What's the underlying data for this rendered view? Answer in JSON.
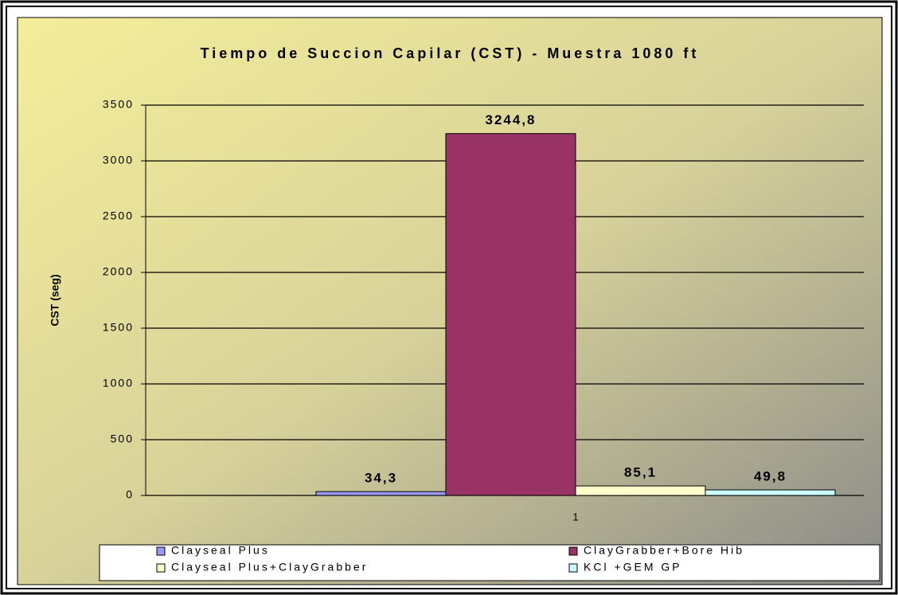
{
  "chart_data": {
    "type": "bar",
    "title": "Tiempo de Succion Capilar (CST) - Muestra 1080 ft",
    "y_label": "CST (seg)",
    "categories": [
      "1"
    ],
    "series": [
      {
        "name": "Clayseal Plus",
        "color": "#9999ff",
        "values": [
          34.3
        ],
        "value_labels": [
          "34,3"
        ]
      },
      {
        "name": "ClayGrabber+Bore Hib",
        "color": "#993366",
        "values": [
          3244.8
        ],
        "value_labels": [
          "3244,8"
        ]
      },
      {
        "name": "Clayseal Plus+ClayGrabber",
        "color": "#ffffcc",
        "values": [
          85.1
        ],
        "value_labels": [
          "85,1"
        ]
      },
      {
        "name": "KCl +GEM GP",
        "color": "#ccffff",
        "values": [
          49.8
        ],
        "value_labels": [
          "49,8"
        ]
      }
    ],
    "ylim": [
      0,
      3500
    ],
    "yticks": [
      0,
      500,
      1000,
      1500,
      2000,
      2500,
      3000,
      3500
    ],
    "grid": true,
    "legend": "bottom"
  }
}
